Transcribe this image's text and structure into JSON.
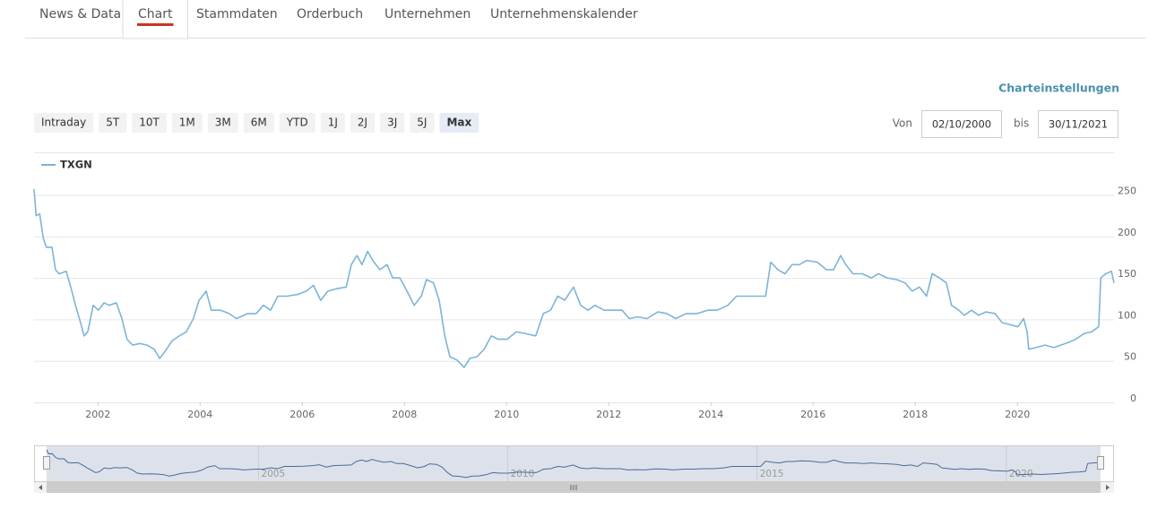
{
  "tabs": [
    "News & Data",
    "Chart",
    "Stammdaten",
    "Orderbuch",
    "Unternehmen",
    "Unternehmenskalender"
  ],
  "active_tab": 1,
  "settings_link": "Charteinstellungen",
  "range_buttons": [
    "Intraday",
    "5T",
    "10T",
    "1M",
    "3M",
    "6M",
    "YTD",
    "1J",
    "2J",
    "3J",
    "5J",
    "Max"
  ],
  "active_button": 11,
  "date_from_label": "Von",
  "date_from": "02/10/2000",
  "date_to_label": "bis",
  "date_to": "30/11/2021",
  "chart_data": {
    "type": "line",
    "grid": true,
    "xlim": [
      2000.75,
      2021.89
    ],
    "ylim": [
      0,
      270
    ],
    "xticks": [
      2002,
      2004,
      2006,
      2008,
      2010,
      2012,
      2014,
      2016,
      2018,
      2020
    ],
    "yticks": [
      0,
      50,
      100,
      150,
      200,
      250
    ],
    "navigator_xticks": [
      2005,
      2010,
      2015,
      2020
    ],
    "x": [
      2000.75,
      2000.79,
      2000.86,
      2000.93,
      2000.99,
      2001.1,
      2001.17,
      2001.24,
      2001.38,
      2001.49,
      2001.56,
      2001.66,
      2001.73,
      2001.8,
      2001.91,
      2002.01,
      2002.12,
      2002.22,
      2002.36,
      2002.47,
      2002.57,
      2002.68,
      2002.82,
      2002.96,
      2003.1,
      2003.21,
      2003.31,
      2003.45,
      2003.59,
      2003.73,
      2003.87,
      2003.98,
      2004.12,
      2004.22,
      2004.4,
      2004.57,
      2004.71,
      2004.93,
      2005.1,
      2005.24,
      2005.38,
      2005.52,
      2005.7,
      2005.91,
      2006.08,
      2006.22,
      2006.36,
      2006.5,
      2006.68,
      2006.86,
      2006.96,
      2007.07,
      2007.17,
      2007.28,
      2007.38,
      2007.52,
      2007.66,
      2007.77,
      2007.91,
      2008.05,
      2008.19,
      2008.33,
      2008.43,
      2008.57,
      2008.68,
      2008.79,
      2008.89,
      2009.03,
      2009.17,
      2009.28,
      2009.42,
      2009.56,
      2009.7,
      2009.84,
      2010.01,
      2010.19,
      2010.36,
      2010.57,
      2010.72,
      2010.86,
      2011.0,
      2011.14,
      2011.31,
      2011.45,
      2011.59,
      2011.73,
      2011.91,
      2012.08,
      2012.26,
      2012.4,
      2012.57,
      2012.75,
      2012.96,
      2013.14,
      2013.31,
      2013.52,
      2013.73,
      2013.94,
      2014.12,
      2014.33,
      2014.5,
      2014.71,
      2014.93,
      2015.07,
      2015.17,
      2015.31,
      2015.45,
      2015.59,
      2015.73,
      2015.87,
      2016.08,
      2016.26,
      2016.4,
      2016.54,
      2016.64,
      2016.78,
      2016.96,
      2017.14,
      2017.28,
      2017.45,
      2017.63,
      2017.8,
      2017.94,
      2018.08,
      2018.22,
      2018.33,
      2018.47,
      2018.61,
      2018.71,
      2018.85,
      2018.96,
      2019.1,
      2019.24,
      2019.38,
      2019.56,
      2019.7,
      2019.84,
      2020.01,
      2020.12,
      2020.19,
      2020.22,
      2020.36,
      2020.54,
      2020.71,
      2020.85,
      2020.99,
      2021.14,
      2021.31,
      2021.45,
      2021.59,
      2021.63,
      2021.73,
      2021.84,
      2021.89
    ],
    "series": [
      {
        "name": "TXGN",
        "color": "#7cb5d8",
        "navigator_color": "#4a6a9a",
        "values": [
          257,
          225,
          227,
          198,
          187,
          187,
          160,
          155,
          158,
          134,
          117,
          96,
          80,
          85,
          117,
          111,
          120,
          117,
          120,
          101,
          76,
          69,
          71,
          69,
          64,
          53,
          61,
          74,
          80,
          85,
          101,
          123,
          134,
          111,
          111,
          107,
          101,
          107,
          107,
          117,
          111,
          128,
          128,
          130,
          134,
          141,
          123,
          134,
          137,
          139,
          166,
          177,
          166,
          182,
          171,
          160,
          166,
          150,
          150,
          134,
          117,
          128,
          148,
          144,
          123,
          80,
          55,
          51,
          42,
          53,
          55,
          64,
          80,
          76,
          76,
          85,
          83,
          80,
          107,
          111,
          128,
          123,
          139,
          117,
          111,
          117,
          111,
          111,
          111,
          101,
          103,
          101,
          109,
          107,
          101,
          107,
          107,
          111,
          111,
          117,
          128,
          128,
          128,
          128,
          169,
          160,
          155,
          166,
          166,
          171,
          169,
          160,
          160,
          177,
          166,
          155,
          155,
          150,
          155,
          150,
          148,
          144,
          134,
          139,
          128,
          155,
          150,
          144,
          117,
          111,
          105,
          111,
          105,
          109,
          107,
          96,
          94,
          91,
          101,
          85,
          64,
          66,
          69,
          66,
          69,
          72,
          76,
          83,
          85,
          91,
          150,
          155,
          158,
          144
        ]
      }
    ]
  }
}
